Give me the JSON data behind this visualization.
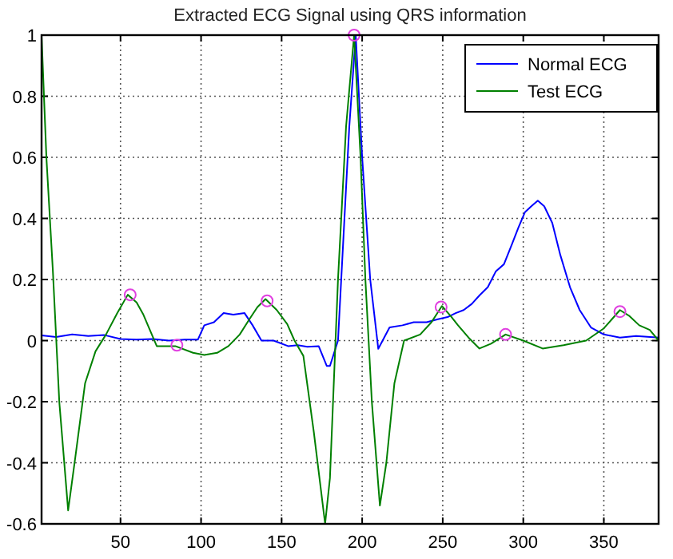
{
  "chart_data": {
    "type": "line",
    "title": "Extracted ECG Signal using QRS information",
    "xlim": [
      1,
      384
    ],
    "ylim": [
      -0.6,
      1
    ],
    "xticks": [
      50,
      100,
      150,
      200,
      250,
      300,
      350
    ],
    "yticks": [
      -0.6,
      -0.4,
      -0.2,
      0,
      0.2,
      0.4,
      0.6,
      0.8,
      1
    ],
    "grid": true,
    "legend": "top right",
    "marker": "none",
    "series": [
      {
        "name": "Normal ECG",
        "color": "#0000ff",
        "x": [
          1,
          10,
          20,
          30,
          40,
          50,
          60,
          70,
          80,
          90,
          98,
          102,
          108,
          114,
          120,
          127,
          132,
          137.5,
          145,
          154,
          160,
          166,
          173,
          178,
          180,
          185,
          188,
          192,
          196,
          200,
          205,
          210,
          217,
          225,
          232,
          240,
          247,
          253,
          258,
          263,
          268,
          273,
          278,
          283,
          288,
          293,
          297,
          301,
          305,
          309,
          313,
          318,
          323,
          329,
          335,
          342,
          350,
          360,
          370,
          384
        ],
        "values": [
          0.017,
          0.012,
          0.02,
          0.015,
          0.018,
          0.005,
          0.003,
          0.005,
          0.0,
          0.003,
          0.003,
          0.05,
          0.06,
          0.09,
          0.085,
          0.09,
          0.05,
          0.0,
          0.0,
          -0.018,
          -0.015,
          -0.02,
          -0.018,
          -0.083,
          -0.083,
          0.0,
          0.3,
          0.7,
          1.0,
          0.6,
          0.2,
          -0.027,
          0.043,
          0.05,
          0.06,
          0.06,
          0.07,
          0.077,
          0.09,
          0.1,
          0.12,
          0.149,
          0.175,
          0.227,
          0.25,
          0.316,
          0.37,
          0.42,
          0.44,
          0.458,
          0.44,
          0.385,
          0.28,
          0.175,
          0.1,
          0.043,
          0.02,
          0.01,
          0.015,
          0.01
        ]
      },
      {
        "name": "Test ECG",
        "color": "#008000",
        "x": [
          1,
          4,
          8,
          12,
          17.5,
          22,
          28,
          34.5,
          41,
          48,
          54.5,
          60,
          64,
          72.5,
          84,
          95,
          102,
          110,
          117,
          124,
          130,
          135,
          140,
          147,
          153.5,
          158,
          163.5,
          170,
          177,
          180,
          185,
          190,
          195,
          199,
          202,
          206,
          211,
          215,
          220,
          226,
          236,
          243,
          249.5,
          255,
          259.5,
          266,
          272.8,
          280,
          289,
          300,
          312,
          325,
          339,
          350,
          355,
          360,
          366,
          372,
          378.5,
          384
        ],
        "values": [
          1.0,
          0.6,
          0.23,
          -0.2,
          -0.556,
          -0.38,
          -0.14,
          -0.035,
          0.02,
          0.09,
          0.15,
          0.125,
          0.087,
          -0.018,
          -0.018,
          -0.04,
          -0.047,
          -0.04,
          -0.018,
          0.02,
          0.07,
          0.11,
          0.136,
          0.1,
          0.054,
          0.0,
          -0.05,
          -0.3,
          -0.6,
          -0.45,
          0.2,
          0.7,
          1.0,
          0.6,
          0.2,
          -0.2,
          -0.54,
          -0.4,
          -0.14,
          0.0,
          0.02,
          0.06,
          0.113,
          0.08,
          0.05,
          0.01,
          -0.026,
          -0.01,
          0.02,
          0.0,
          -0.026,
          -0.015,
          0.0,
          0.04,
          0.07,
          0.1,
          0.08,
          0.05,
          0.035,
          0.0
        ]
      },
      {
        "type": "scatter",
        "marker": "circle",
        "color": "#e040e0",
        "x": [
          56,
          85,
          141,
          195,
          249,
          289,
          360
        ],
        "values": [
          0.15,
          -0.015,
          0.13,
          1.0,
          0.11,
          0.02,
          0.095
        ]
      }
    ]
  }
}
